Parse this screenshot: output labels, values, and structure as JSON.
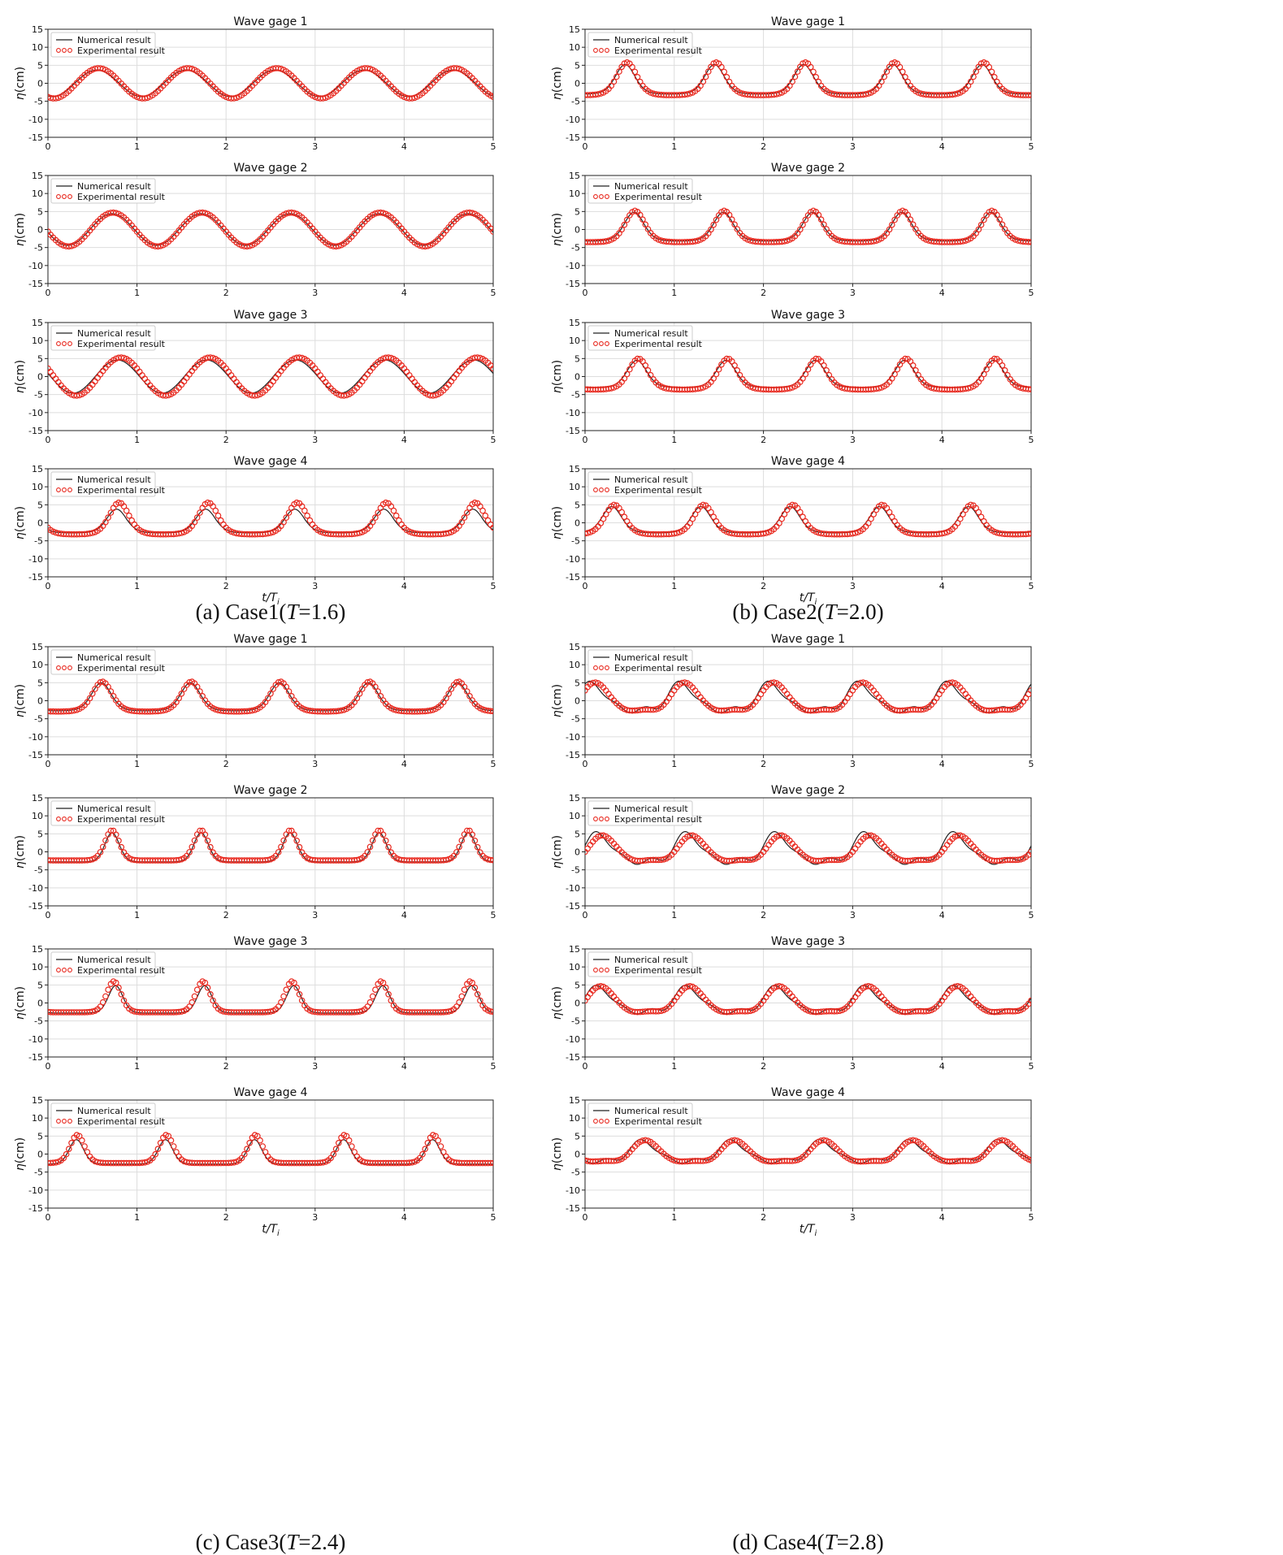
{
  "chart_data": {
    "type": "line",
    "xlabel": "t/T_i",
    "xlabel_main": "t/T",
    "xlabel_sub": "i",
    "ylabel": "η(cm)",
    "ylabel_symbol": "η",
    "ylabel_unit": "(cm)",
    "xlim": [
      0,
      5
    ],
    "ylim": [
      -15,
      15
    ],
    "xticks": [
      "0",
      "1",
      "2",
      "3",
      "4",
      "5"
    ],
    "yticks": [
      "15",
      "10",
      "5",
      "0",
      "-5",
      "-10",
      "-15"
    ],
    "grid": true,
    "legend": {
      "location": "upper-left",
      "entries": [
        "Numerical result",
        "Experimental result"
      ]
    },
    "series_style": {
      "numerical": "#222222",
      "experimental": "#e8281e"
    },
    "cases": [
      {
        "caption_prefix": "(a)  Case1(",
        "caption_T": "T",
        "caption_suffix": "=1.6)",
        "period": 1.6,
        "gages": [
          {
            "title": "Wave gage 1",
            "numerical": {
              "amp": 3.7,
              "phase": 0.55,
              "shape": "sine"
            },
            "experimental": {
              "amp": 4.2,
              "phase": 0.57,
              "shape": "sine"
            }
          },
          {
            "title": "Wave gage 2",
            "numerical": {
              "amp": 4.4,
              "phase": 0.72,
              "shape": "sine"
            },
            "experimental": {
              "amp": 4.7,
              "phase": 0.73,
              "shape": "sine"
            }
          },
          {
            "title": "Wave gage 3",
            "numerical": {
              "amp": 4.6,
              "phase": 0.78,
              "shape": "sine"
            },
            "experimental": {
              "amp": 5.3,
              "phase": 0.82,
              "shape": "sine"
            }
          },
          {
            "title": "Wave gage 4",
            "numerical": {
              "crest": 3.8,
              "trough": -2.8,
              "phase": 0.77,
              "shape": "peaked"
            },
            "experimental": {
              "crest": 5.6,
              "trough": -3.2,
              "phase": 0.8,
              "shape": "peaked"
            }
          }
        ]
      },
      {
        "caption_prefix": "(b)  Case2(",
        "caption_T": "T",
        "caption_suffix": "=2.0)",
        "period": 2.0,
        "gages": [
          {
            "title": "Wave gage 1",
            "numerical": {
              "crest": 5.2,
              "trough": -3.0,
              "phase": 0.45,
              "shape": "peaked"
            },
            "experimental": {
              "crest": 5.8,
              "trough": -3.3,
              "phase": 0.47,
              "shape": "peaked"
            }
          },
          {
            "title": "Wave gage 2",
            "numerical": {
              "crest": 4.8,
              "trough": -3.2,
              "phase": 0.55,
              "shape": "peaked"
            },
            "experimental": {
              "crest": 5.2,
              "trough": -3.5,
              "phase": 0.56,
              "shape": "peaked"
            }
          },
          {
            "title": "Wave gage 3",
            "numerical": {
              "crest": 4.5,
              "trough": -3.0,
              "phase": 0.58,
              "shape": "peaked"
            },
            "experimental": {
              "crest": 5.0,
              "trough": -3.6,
              "phase": 0.6,
              "shape": "peaked"
            }
          },
          {
            "title": "Wave gage 4",
            "numerical": {
              "crest": 4.5,
              "trough": -2.8,
              "phase": 0.3,
              "shape": "peaked"
            },
            "experimental": {
              "crest": 5.0,
              "trough": -3.2,
              "phase": 0.33,
              "shape": "peaked"
            }
          }
        ]
      },
      {
        "caption_prefix": "(c)  Case3(",
        "caption_T": "T",
        "caption_suffix": "=2.4)",
        "period": 2.4,
        "gages": [
          {
            "title": "Wave gage 1",
            "numerical": {
              "crest": 5.0,
              "trough": -2.8,
              "phase": 0.6,
              "shape": "peaked"
            },
            "experimental": {
              "crest": 5.3,
              "trough": -3.0,
              "phase": 0.61,
              "shape": "peaked"
            }
          },
          {
            "title": "Wave gage 2",
            "numerical": {
              "crest": 5.3,
              "trough": -2.8,
              "phase": 0.72,
              "shape": "narrow"
            },
            "experimental": {
              "crest": 6.0,
              "trough": -2.4,
              "phase": 0.72,
              "shape": "narrow"
            }
          },
          {
            "title": "Wave gage 3",
            "numerical": {
              "crest": 4.8,
              "trough": -2.8,
              "phase": 0.76,
              "shape": "narrow"
            },
            "experimental": {
              "crest": 6.0,
              "trough": -2.6,
              "phase": 0.74,
              "shape": "narrow"
            }
          },
          {
            "title": "Wave gage 4",
            "numerical": {
              "crest": 4.0,
              "trough": -2.8,
              "phase": 0.32,
              "shape": "narrow"
            },
            "experimental": {
              "crest": 5.3,
              "trough": -2.5,
              "phase": 0.33,
              "shape": "narrow"
            }
          }
        ]
      },
      {
        "caption_prefix": "(d)  Case4(",
        "caption_T": "T",
        "caption_suffix": "=2.8)",
        "period": 2.8,
        "gages": [
          {
            "title": "Wave gage 1",
            "numerical": {
              "amp": 4.8,
              "phase": 0.08,
              "shape": "harm2",
              "h2": 1.8
            },
            "experimental": {
              "amp": 5.0,
              "phase": 0.12,
              "shape": "harm1",
              "h2": 0.6
            }
          },
          {
            "title": "Wave gage 2",
            "numerical": {
              "amp": 5.0,
              "phase": 0.15,
              "shape": "harm2",
              "h2": 1.8
            },
            "experimental": {
              "amp": 4.5,
              "phase": 0.2,
              "shape": "harm1",
              "h2": 0.6
            }
          },
          {
            "title": "Wave gage 3",
            "numerical": {
              "amp": 4.4,
              "phase": 0.15,
              "shape": "harm2",
              "h2": 1.5
            },
            "experimental": {
              "amp": 4.6,
              "phase": 0.18,
              "shape": "harm1",
              "h2": 0.5
            }
          },
          {
            "title": "Wave gage 4",
            "numerical": {
              "amp": 3.6,
              "phase": 0.65,
              "shape": "harm2",
              "h2": 1.3
            },
            "experimental": {
              "amp": 3.8,
              "phase": 0.68,
              "shape": "harm1",
              "h2": 0.4
            }
          }
        ]
      }
    ]
  }
}
